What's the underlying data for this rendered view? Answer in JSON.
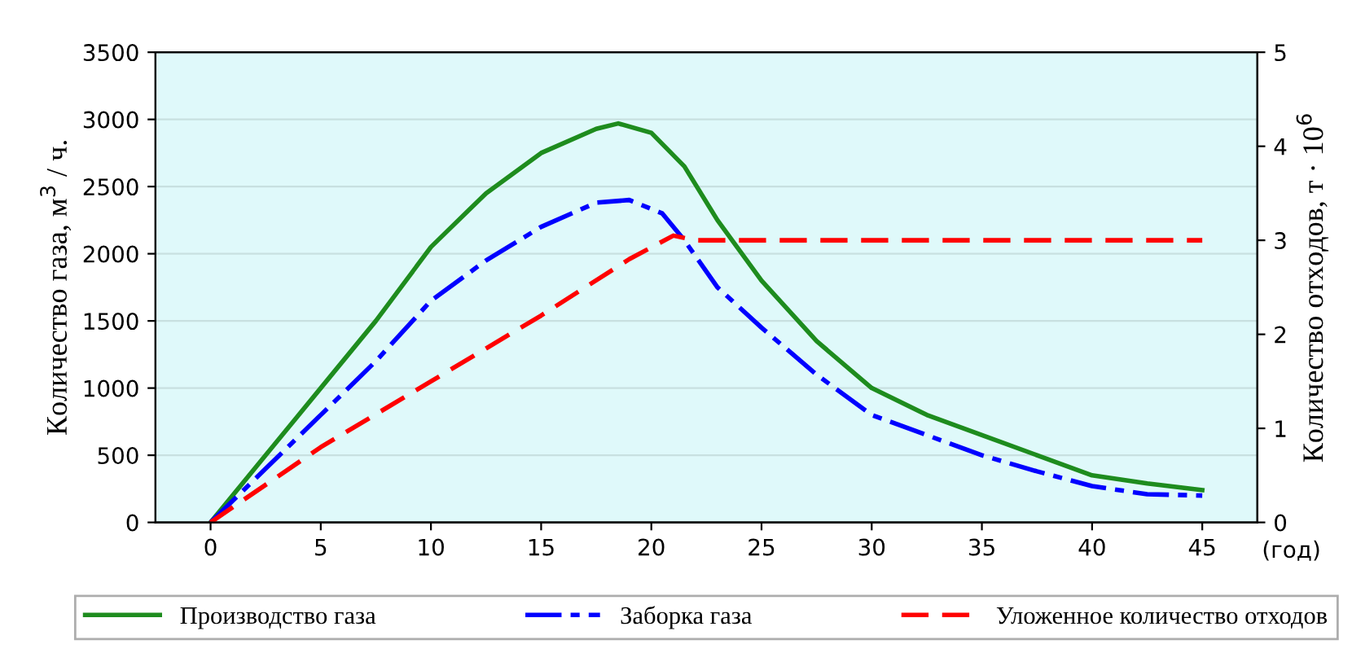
{
  "chart_data": {
    "type": "line",
    "xlabel": "(год)",
    "ylabel": "Количество газа, м$^{3}$ / ч.",
    "y2label": "Количество отходов, т · 10$^{6}$",
    "xlim": [
      -2.5,
      47.5
    ],
    "xticks": [
      0,
      5,
      10,
      15,
      20,
      25,
      30,
      35,
      40,
      45
    ],
    "ylim": [
      0,
      3500
    ],
    "yticks": [
      0,
      500,
      1000,
      1500,
      2000,
      2500,
      3000,
      3500
    ],
    "y2lim": [
      0,
      5
    ],
    "y2ticks": [
      0,
      1,
      2,
      3,
      4,
      5
    ],
    "grid": "y",
    "legend": "bottom",
    "marker": "none",
    "series": [
      {
        "name": "Производство газа",
        "color": "#1e8c1e",
        "line_style": "solid",
        "x": [
          0,
          2.5,
          5,
          7.5,
          10,
          12.5,
          15,
          17.5,
          18.5,
          20,
          21.5,
          23,
          25,
          27.5,
          30,
          32.5,
          35,
          37.5,
          40,
          42.5,
          45
        ],
        "values": [
          0,
          500,
          1000,
          1500,
          2050,
          2450,
          2750,
          2930,
          2970,
          2900,
          2650,
          2250,
          1800,
          1350,
          1000,
          800,
          650,
          500,
          350,
          290,
          240
        ]
      },
      {
        "name": "Заборка газа",
        "color": "#0000ff",
        "line_style": "dashdot",
        "x": [
          0,
          2.5,
          5,
          7.5,
          10,
          12.5,
          15,
          17.5,
          19,
          20.5,
          21.5,
          23,
          25,
          27.5,
          30,
          32.5,
          35,
          37.5,
          40,
          42.5,
          45
        ],
        "values": [
          0,
          400,
          800,
          1200,
          1650,
          1950,
          2200,
          2380,
          2400,
          2300,
          2100,
          1750,
          1450,
          1100,
          800,
          650,
          500,
          380,
          270,
          210,
          200
        ]
      },
      {
        "name": "Уложенное количество отходов",
        "color": "#ff0000",
        "line_style": "dashed",
        "axis": "y2",
        "x": [
          0,
          5,
          10,
          15,
          19,
          21,
          22,
          45
        ],
        "values": [
          0,
          0.8,
          1.5,
          2.2,
          2.8,
          3.05,
          3.0,
          3.0
        ]
      }
    ]
  }
}
